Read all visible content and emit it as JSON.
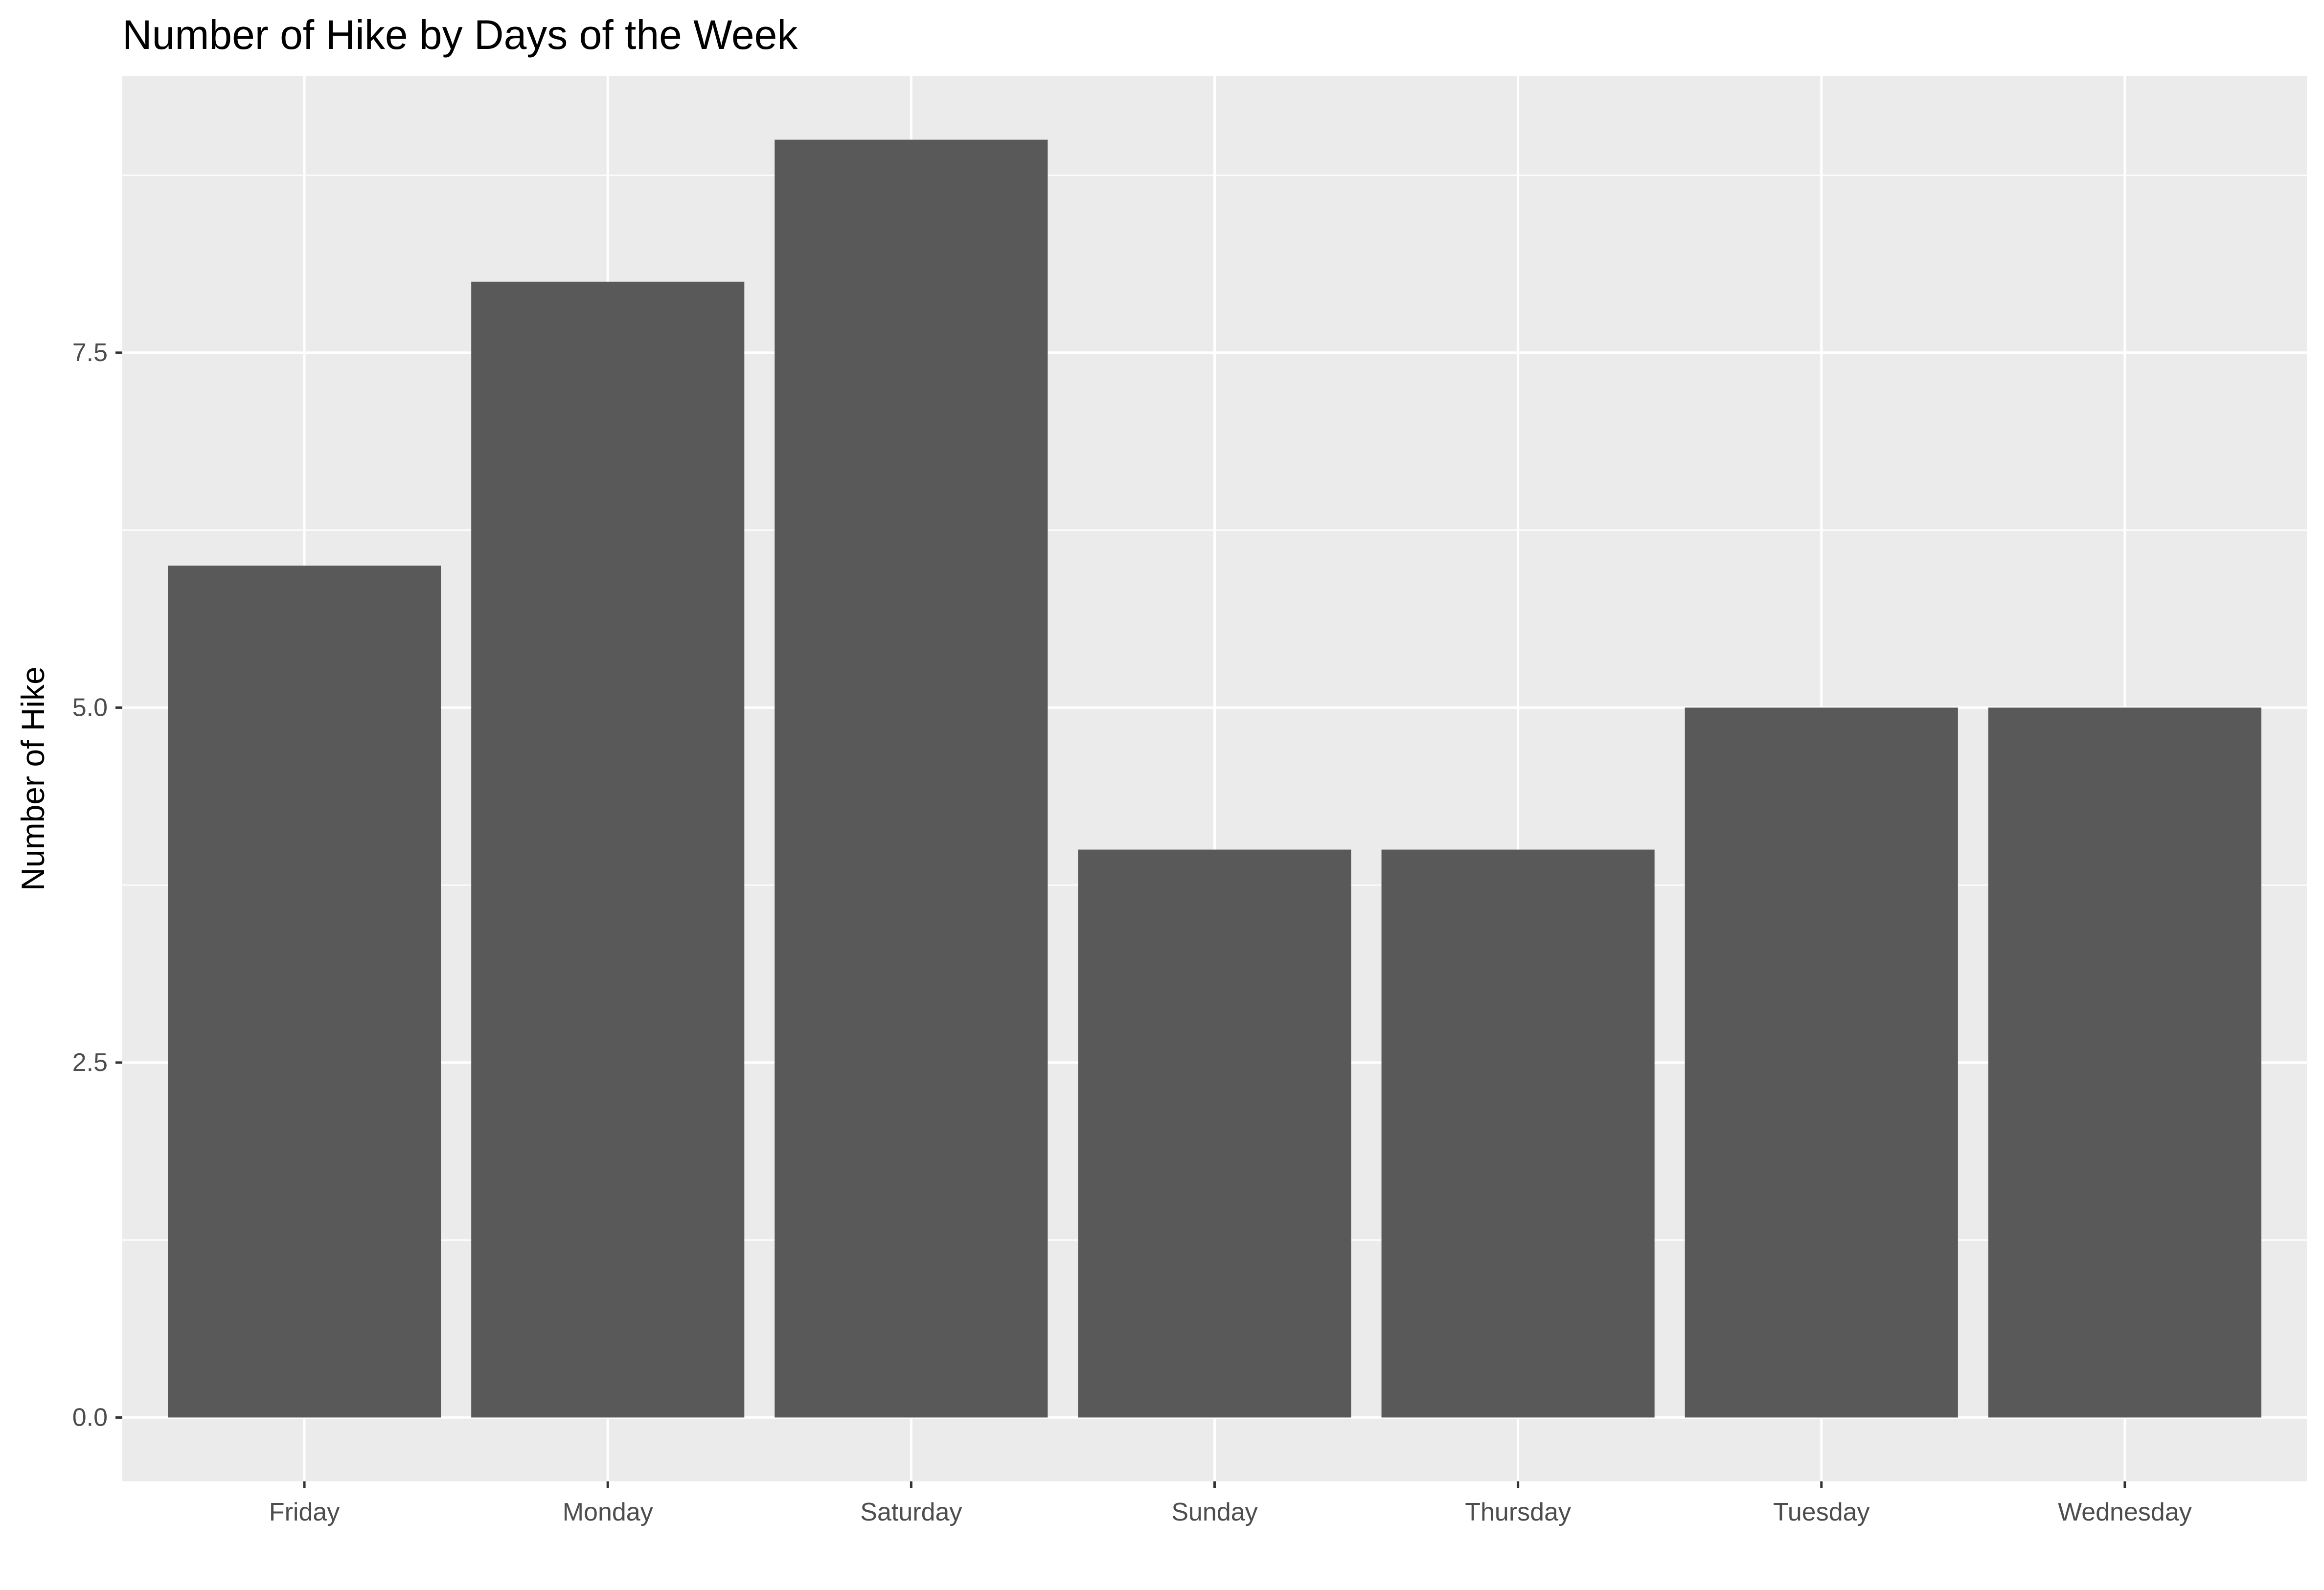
{
  "chart_data": {
    "type": "bar",
    "title": "Number of Hike by Days of the Week",
    "xlabel": "",
    "ylabel": "Number of Hike",
    "categories": [
      "Friday",
      "Monday",
      "Saturday",
      "Sunday",
      "Thursday",
      "Tuesday",
      "Wednesday"
    ],
    "values": [
      6,
      8,
      9,
      4,
      4,
      5,
      5
    ],
    "ylim": [
      -0.45,
      9.45
    ],
    "y_ticks": [
      0,
      2.5,
      5,
      7.5
    ],
    "y_tick_labels": [
      "0.0",
      "2.5",
      "5.0",
      "7.5"
    ],
    "grid": true,
    "legend": "none",
    "colors": {
      "panel_background": "#EBEBEB",
      "grid_line": "#FFFFFF",
      "bar_fill": "#595959",
      "tick_text": "#4D4D4D",
      "tick_mark": "#333333",
      "title_text": "#000000"
    }
  }
}
